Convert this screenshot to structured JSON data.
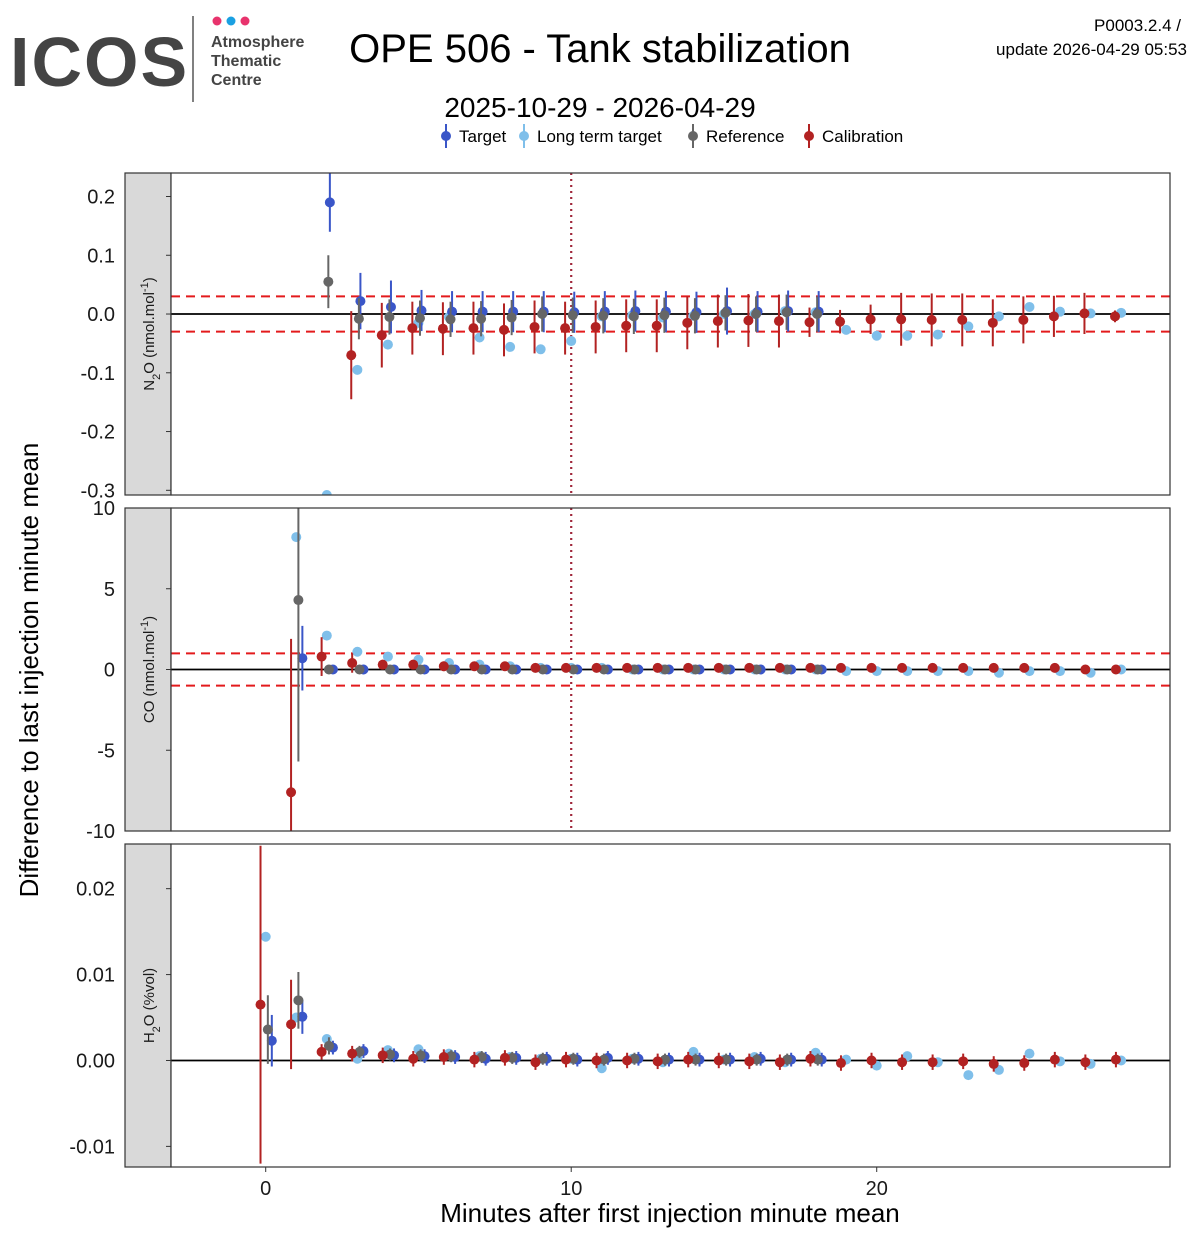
{
  "header": {
    "logo_text": "ICOS",
    "logo_subtitle": [
      "Atmosphere",
      "Thematic",
      "Centre"
    ],
    "logo_dot_colors": [
      "#e8336d",
      "#1aa0e2",
      "#e8336d"
    ],
    "title": "OPE 506 - Tank stabilization",
    "version": "P0003.2.4 /",
    "update": "update  2026-04-29 05:53",
    "date_range": "2025-10-29 - 2026-04-29"
  },
  "chart_data": {
    "type": "scatter",
    "xlabel": "Minutes after first injection minute mean",
    "ylabel": "Difference to last injection minute mean",
    "xlim": [
      -3.1,
      29.6
    ],
    "x_ticks": [
      0,
      10,
      20
    ],
    "x_tick_labels": [
      "0",
      "10",
      "20"
    ],
    "vline_x": 10,
    "legend": [
      {
        "name": "Target",
        "color": "#3a56c8"
      },
      {
        "name": "Long term target",
        "color": "#7fbfea"
      },
      {
        "name": "Reference",
        "color": "#666666"
      },
      {
        "name": "Calibration",
        "color": "#b22222"
      }
    ],
    "panels": [
      {
        "strip": "N2O (nmol.mol-1)",
        "strip_main": "N",
        "strip_sub": "2",
        "strip_mid": "O (nmol.mol",
        "strip_sup": "-1",
        "strip_end": ")",
        "ylim": [
          -0.308,
          0.24
        ],
        "y_ticks": [
          0.2,
          0.1,
          0.0,
          -0.1,
          -0.2,
          -0.3
        ],
        "y_tick_labels": [
          "0.2",
          "0.1",
          "0.0",
          "-0.1",
          "-0.2",
          "-0.3"
        ],
        "hlines": [
          0.03,
          -0.03
        ],
        "show_vline": true,
        "series": [
          {
            "name": "Long term target",
            "x": [
              2.0,
              3.0,
              4.0,
              5.0,
              6.0,
              7.0,
              8.0,
              9.0,
              10.0,
              11.0,
              12.0,
              13.0,
              14.0,
              15.0,
              16.0,
              17.0,
              18.0,
              19.0,
              20.0,
              21.0,
              22.0,
              23.0,
              24.0,
              25.0,
              26.0,
              27.0,
              28.0
            ],
            "y": [
              -0.308,
              -0.095,
              -0.052,
              -0.015,
              -0.005,
              -0.04,
              -0.056,
              -0.06,
              -0.046,
              -0.004,
              -0.002,
              -0.006,
              -0.003,
              0.0,
              0.0,
              0.005,
              0.003,
              -0.027,
              -0.037,
              -0.037,
              -0.035,
              -0.021,
              -0.004,
              0.012,
              0.004,
              0.001,
              0.002
            ]
          },
          {
            "name": "Target",
            "x": [
              2.1,
              3.1,
              4.1,
              5.1,
              6.1,
              7.1,
              8.1,
              9.1,
              10.1,
              11.1,
              12.1,
              13.1,
              14.1,
              15.1,
              16.1,
              17.1,
              18.1
            ],
            "y": [
              0.19,
              0.022,
              0.012,
              0.006,
              0.004,
              0.004,
              0.004,
              0.004,
              0.003,
              0.004,
              0.005,
              0.004,
              0.003,
              0.005,
              0.004,
              0.005,
              0.004
            ],
            "err": [
              0.05,
              0.048,
              0.045,
              0.035,
              0.035,
              0.035,
              0.035,
              0.035,
              0.035,
              0.035,
              0.035,
              0.035,
              0.035,
              0.04,
              0.035,
              0.035,
              0.035
            ]
          },
          {
            "name": "Reference",
            "x": [
              2.05,
              3.05,
              4.05,
              5.05,
              6.05,
              7.05,
              8.05,
              9.05,
              10.05,
              11.05,
              12.05,
              13.05,
              14.05,
              15.05,
              16.05,
              17.05,
              18.05
            ],
            "y": [
              0.055,
              -0.008,
              -0.005,
              -0.007,
              -0.009,
              -0.008,
              -0.006,
              0.0,
              -0.002,
              -0.003,
              -0.004,
              -0.002,
              -0.003,
              0.002,
              0.0,
              0.003,
              0.0
            ],
            "err": [
              0.045,
              0.035,
              0.03,
              0.03,
              0.03,
              0.03,
              0.03,
              0.03,
              0.03,
              0.03,
              0.03,
              0.03,
              0.03,
              0.03,
              0.03,
              0.03,
              0.03
            ]
          },
          {
            "name": "Calibration",
            "x": [
              2.8,
              3.8,
              4.8,
              5.8,
              6.8,
              7.8,
              8.8,
              9.8,
              10.8,
              11.8,
              12.8,
              13.8,
              14.8,
              15.8,
              16.8,
              17.8,
              18.8,
              19.8,
              20.8,
              21.8,
              22.8,
              23.8,
              24.8,
              25.8,
              26.8,
              27.8
            ],
            "y": [
              -0.07,
              -0.036,
              -0.024,
              -0.025,
              -0.024,
              -0.027,
              -0.022,
              -0.024,
              -0.022,
              -0.02,
              -0.02,
              -0.015,
              -0.012,
              -0.011,
              -0.012,
              -0.014,
              -0.013,
              -0.009,
              -0.009,
              -0.01,
              -0.01,
              -0.015,
              -0.01,
              -0.004,
              0.001,
              -0.004
            ],
            "err": [
              0.075,
              0.055,
              0.045,
              0.045,
              0.045,
              0.045,
              0.045,
              0.045,
              0.045,
              0.045,
              0.045,
              0.045,
              0.045,
              0.045,
              0.045,
              0.025,
              0.02,
              0.025,
              0.045,
              0.045,
              0.045,
              0.04,
              0.04,
              0.035,
              0.035,
              0.01
            ]
          }
        ]
      },
      {
        "strip": "CO (nmol.mol-1)",
        "strip_main": "",
        "strip_sub": "",
        "strip_mid": "CO (nmol.mol",
        "strip_sup": "-1",
        "strip_end": ")",
        "ylim": [
          -10,
          10
        ],
        "y_ticks": [
          10,
          5,
          0,
          -5,
          -10
        ],
        "y_tick_labels": [
          "10",
          "5",
          "0",
          "-5",
          "-10"
        ],
        "hlines": [
          1.0,
          -1.0
        ],
        "show_vline": true,
        "series": [
          {
            "name": "Long term target",
            "x": [
              1.0,
              2.0,
              3.0,
              4.0,
              5.0,
              6.0,
              7.0,
              8.0,
              9.0,
              10.0,
              11.0,
              12.0,
              13.0,
              14.0,
              15.0,
              16.0,
              17.0,
              18.0,
              19.0,
              20.0,
              21.0,
              22.0,
              23.0,
              24.0,
              25.0,
              26.0,
              27.0,
              28.0
            ],
            "y": [
              8.2,
              2.1,
              1.1,
              0.8,
              0.6,
              0.4,
              0.3,
              0.2,
              0.1,
              0.1,
              0.1,
              0.0,
              0.0,
              0.0,
              0.0,
              0.0,
              0.0,
              0.0,
              -0.1,
              -0.1,
              -0.1,
              -0.1,
              -0.1,
              -0.2,
              -0.1,
              -0.1,
              -0.2,
              0.0
            ]
          },
          {
            "name": "Target",
            "x": [
              1.2,
              2.2,
              3.2,
              4.2,
              5.2,
              6.2,
              7.2,
              8.2,
              9.2,
              10.2,
              11.2,
              12.2,
              13.2,
              14.2,
              15.2,
              16.2,
              17.2,
              18.2
            ],
            "y": [
              0.7,
              0.0,
              0.0,
              0.0,
              0.0,
              0.0,
              0.0,
              0.0,
              0.0,
              0.0,
              0.0,
              0.0,
              0.0,
              0.0,
              0.0,
              0.0,
              0.0,
              0.0
            ],
            "err": [
              2.0,
              0.2,
              0.3,
              0.2,
              0.2,
              0.2,
              0.2,
              0.2,
              0.2,
              0.2,
              0.2,
              0.2,
              0.2,
              0.2,
              0.2,
              0.2,
              0.2,
              0.2
            ]
          },
          {
            "name": "Reference",
            "x": [
              1.07,
              2.07,
              3.07,
              4.07,
              5.07,
              6.07,
              7.07,
              8.07,
              9.07,
              10.07,
              11.07,
              12.07,
              13.07,
              14.07,
              15.07,
              16.07,
              17.07,
              18.07
            ],
            "y": [
              4.3,
              0.0,
              0.0,
              0.0,
              0.0,
              0.0,
              0.0,
              0.0,
              0.0,
              0.0,
              0.0,
              0.0,
              0.0,
              0.0,
              0.0,
              0.0,
              0.0,
              0.0
            ],
            "err": [
              10.0,
              0.2,
              0.2,
              0.2,
              0.2,
              0.2,
              0.2,
              0.2,
              0.2,
              0.2,
              0.2,
              0.2,
              0.2,
              0.2,
              0.2,
              0.2,
              0.2,
              0.2
            ]
          },
          {
            "name": "Calibration",
            "x": [
              0.83,
              1.83,
              2.83,
              3.83,
              4.83,
              5.83,
              6.83,
              7.83,
              8.83,
              9.83,
              10.83,
              11.83,
              12.83,
              13.83,
              14.83,
              15.83,
              16.83,
              17.83,
              18.83,
              19.83,
              20.83,
              21.83,
              22.83,
              23.83,
              24.83,
              25.83,
              26.83,
              27.83
            ],
            "y": [
              -7.6,
              0.8,
              0.4,
              0.3,
              0.3,
              0.2,
              0.2,
              0.2,
              0.1,
              0.1,
              0.1,
              0.1,
              0.1,
              0.1,
              0.1,
              0.1,
              0.1,
              0.1,
              0.1,
              0.1,
              0.1,
              0.1,
              0.1,
              0.1,
              0.1,
              0.1,
              0.0,
              0.0
            ],
            "err": [
              9.5,
              1.2,
              0.6,
              0.3,
              0.3,
              0.3,
              0.2,
              0.2,
              0.2,
              0.2,
              0.2,
              0.2,
              0.2,
              0.2,
              0.2,
              0.2,
              0.2,
              0.2,
              0.2,
              0.2,
              0.2,
              0.2,
              0.2,
              0.2,
              0.2,
              0.2,
              0.2,
              0.2
            ]
          }
        ]
      },
      {
        "strip": "H2O (%vol)",
        "strip_main": "H",
        "strip_sub": "2",
        "strip_mid": "O (%vol)",
        "strip_sup": "",
        "strip_end": "",
        "ylim": [
          -0.0124,
          0.0252
        ],
        "y_ticks": [
          0.02,
          0.01,
          0.0,
          -0.01
        ],
        "y_tick_labels": [
          "0.02",
          "0.01",
          "0.00",
          "-0.01"
        ],
        "hlines": [],
        "show_vline": false,
        "series": [
          {
            "name": "Long term target",
            "x": [
              0.0,
              1.0,
              2.0,
              3.0,
              4.0,
              5.0,
              6.0,
              7.0,
              8.0,
              9.0,
              10.0,
              11.0,
              12.0,
              13.0,
              14.0,
              15.0,
              16.0,
              17.0,
              18.0,
              19.0,
              20.0,
              21.0,
              22.0,
              23.0,
              24.0,
              25.0,
              26.0,
              27.0,
              28.0
            ],
            "y": [
              0.0144,
              0.005,
              0.0025,
              0.0002,
              0.0012,
              0.0013,
              0.0008,
              0.0005,
              0.0004,
              0.0002,
              0.0002,
              -0.0009,
              0.0002,
              -0.0002,
              0.001,
              0.0001,
              0.0004,
              -0.0002,
              0.0009,
              0.0001,
              -0.0006,
              0.0005,
              -0.0002,
              -0.0017,
              -0.0011,
              0.0008,
              -0.0001,
              -0.0004,
              0.0
            ]
          },
          {
            "name": "Target",
            "x": [
              0.2,
              1.2,
              2.2,
              3.2,
              4.2,
              5.2,
              6.2,
              7.2,
              8.2,
              9.2,
              10.2,
              11.2,
              12.2,
              13.2,
              14.2,
              15.2,
              16.2,
              17.2,
              18.2
            ],
            "y": [
              0.0023,
              0.0051,
              0.0015,
              0.0011,
              0.0006,
              0.0005,
              0.0004,
              0.0002,
              0.0003,
              0.0002,
              0.0001,
              0.0003,
              0.0002,
              0.0001,
              0.0001,
              0.0001,
              0.0002,
              0.0001,
              0.0001
            ],
            "err": [
              0.003,
              0.002,
              0.0008,
              0.0008,
              0.0008,
              0.0008,
              0.0008,
              0.0008,
              0.0008,
              0.0008,
              0.0008,
              0.0008,
              0.0008,
              0.0008,
              0.0008,
              0.0008,
              0.0008,
              0.0008,
              0.0008
            ]
          },
          {
            "name": "Reference",
            "x": [
              0.07,
              1.07,
              2.07,
              3.07,
              4.07,
              5.07,
              6.07,
              7.07,
              8.07,
              9.07,
              10.07,
              11.07,
              12.07,
              13.07,
              14.07,
              15.07,
              16.07,
              17.07,
              18.07
            ],
            "y": [
              0.0036,
              0.007,
              0.0017,
              0.001,
              0.0007,
              0.0006,
              0.0005,
              0.0004,
              0.0003,
              0.0002,
              0.0002,
              0.0001,
              0.0002,
              0.0001,
              0.0001,
              0.0001,
              0.0001,
              0.0001,
              0.0001
            ],
            "err": [
              0.004,
              0.0033,
              0.001,
              0.0007,
              0.0007,
              0.0007,
              0.0007,
              0.0007,
              0.0007,
              0.0007,
              0.0007,
              0.0007,
              0.0007,
              0.0007,
              0.0007,
              0.0007,
              0.0007,
              0.0007,
              0.0007
            ]
          },
          {
            "name": "Calibration",
            "x": [
              -0.17,
              0.83,
              1.83,
              2.83,
              3.83,
              4.83,
              5.83,
              6.83,
              7.83,
              8.83,
              9.83,
              10.83,
              11.83,
              12.83,
              13.83,
              14.83,
              15.83,
              16.83,
              17.83,
              18.83,
              19.83,
              20.83,
              21.83,
              22.83,
              23.83,
              24.83,
              25.83,
              26.83,
              27.83
            ],
            "y": [
              0.0065,
              0.0042,
              0.001,
              0.0008,
              0.0006,
              0.0002,
              0.0004,
              0.0001,
              0.0003,
              -0.0002,
              0.0001,
              0.0,
              0.0,
              -0.0001,
              0.0001,
              0.0,
              -0.0001,
              -0.0002,
              0.0002,
              -0.0003,
              0.0,
              -0.0002,
              -0.0002,
              -0.0001,
              -0.0004,
              -0.0003,
              0.0001,
              -0.0002,
              0.0001
            ],
            "err": [
              0.0185,
              0.0052,
              0.0009,
              0.0009,
              0.0009,
              0.0009,
              0.0009,
              0.0009,
              0.0009,
              0.0009,
              0.0009,
              0.0009,
              0.0009,
              0.0009,
              0.0009,
              0.0009,
              0.0009,
              0.0009,
              0.0009,
              0.0009,
              0.0009,
              0.0009,
              0.0009,
              0.0009,
              0.0009,
              0.0009,
              0.0009,
              0.0009,
              0.0009
            ]
          }
        ]
      }
    ]
  }
}
